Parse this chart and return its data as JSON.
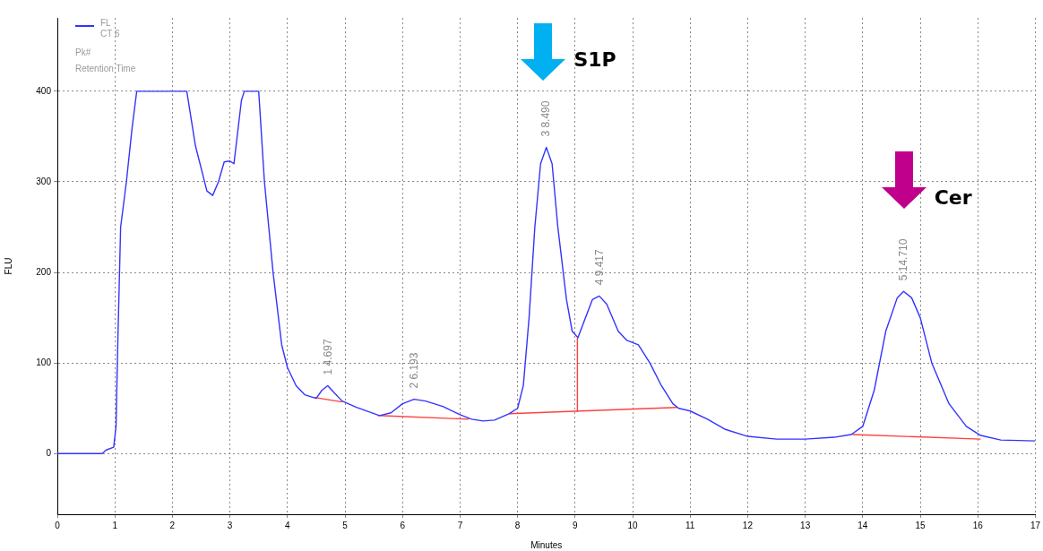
{
  "chart_data": {
    "type": "line",
    "xlabel": "Minutes",
    "ylabel": "FLU",
    "xlim": [
      0,
      17
    ],
    "xticks": [
      0,
      1,
      2,
      3,
      4,
      5,
      6,
      7,
      8,
      9,
      10,
      11,
      12,
      13,
      14,
      15,
      16,
      17
    ],
    "ylim": [
      -67,
      481
    ],
    "yticks": [
      0,
      100,
      200,
      300,
      400
    ],
    "grid": true,
    "legend": "top left",
    "marker": "none",
    "line_style": "solid",
    "series": [
      {
        "name": "FL",
        "color": "#3333ff",
        "x": [
          0,
          0.78,
          0.85,
          0.98,
          1.02,
          1.05,
          1.1,
          1.2,
          1.3,
          1.38,
          2.25,
          2.4,
          2.6,
          2.7,
          2.8,
          2.9,
          3.0,
          3.07,
          3.2,
          3.25,
          3.5,
          3.6,
          3.75,
          3.9,
          4.0,
          4.15,
          4.3,
          4.5,
          4.6,
          4.7,
          4.8,
          4.95,
          5.2,
          5.6,
          5.8,
          6.0,
          6.2,
          6.4,
          6.7,
          7.0,
          7.2,
          7.4,
          7.6,
          7.85,
          8.0,
          8.1,
          8.2,
          8.3,
          8.4,
          8.5,
          8.6,
          8.7,
          8.85,
          8.95,
          9.05,
          9.15,
          9.3,
          9.42,
          9.55,
          9.75,
          9.9,
          10.1,
          10.3,
          10.5,
          10.7,
          10.8,
          11.0,
          11.3,
          11.6,
          12.0,
          12.5,
          13.0,
          13.5,
          13.8,
          14.0,
          14.2,
          14.4,
          14.6,
          14.71,
          14.85,
          15.0,
          15.2,
          15.5,
          15.8,
          16.05,
          16.4,
          17
        ],
        "values": [
          0,
          0,
          4,
          7,
          30,
          120,
          250,
          300,
          360,
          400,
          400,
          340,
          290,
          285,
          300,
          322,
          323,
          320,
          390,
          400,
          400,
          300,
          200,
          120,
          95,
          75,
          65,
          61,
          70,
          75,
          68,
          58,
          51,
          42,
          45,
          55,
          60,
          58,
          52,
          43,
          38,
          36,
          37,
          44,
          50,
          75,
          150,
          250,
          320,
          338,
          320,
          250,
          170,
          135,
          128,
          145,
          170,
          174,
          165,
          135,
          125,
          120,
          100,
          75,
          55,
          50,
          47,
          38,
          27,
          19,
          16,
          16,
          18,
          21,
          30,
          70,
          135,
          172,
          179,
          172,
          150,
          100,
          55,
          30,
          20,
          15,
          14
        ]
      },
      {
        "color": "#ff4040",
        "x": [
          4.47,
          4.95
        ],
        "values": [
          62,
          57
        ]
      },
      {
        "color": "#ff4040",
        "x": [
          5.57,
          7.15
        ],
        "values": [
          42,
          38
        ]
      },
      {
        "color": "#ff4040",
        "x": [
          7.85,
          10.77
        ],
        "values": [
          44,
          51
        ]
      },
      {
        "color": "#ff4040",
        "x": [
          9.04,
          9.04
        ],
        "values": [
          46,
          128
        ]
      },
      {
        "color": "#ff4040",
        "x": [
          13.82,
          16.05
        ],
        "values": [
          21,
          16
        ]
      }
    ],
    "annotations": [
      "CT 6",
      "Pk#",
      "Retention Time",
      {
        "text": "1 4.697",
        "x": 4.697,
        "y": 75
      },
      {
        "text": "2 6.193",
        "x": 6.193,
        "y": 60
      },
      {
        "text": "3 8.490",
        "x": 8.49,
        "y": 338
      },
      {
        "text": "4 9.417",
        "x": 9.417,
        "y": 174
      },
      {
        "text": "5 14.710",
        "x": 14.71,
        "y": 179
      },
      "S1P",
      "Cer"
    ]
  }
}
